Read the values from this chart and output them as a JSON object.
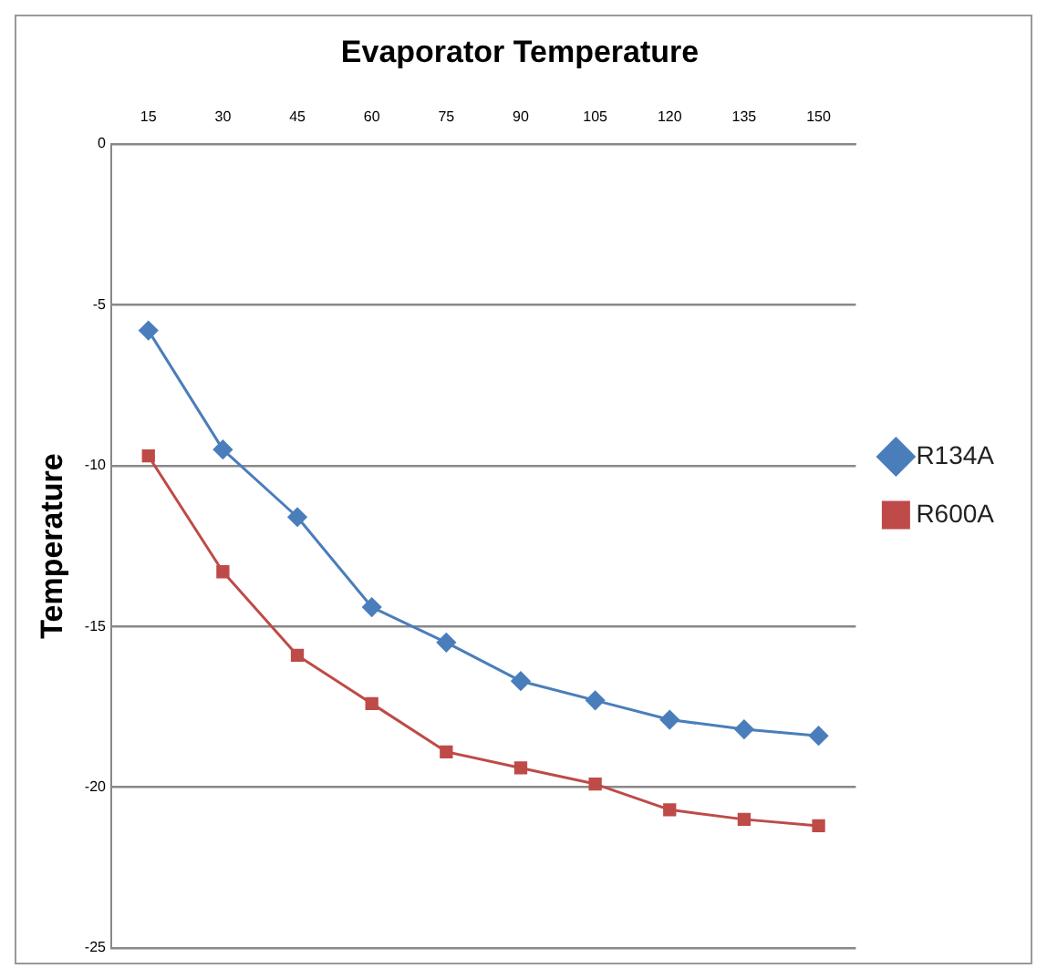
{
  "chart_data": {
    "type": "line",
    "title": "Evaporator Temperature",
    "ylabel": "Temperature",
    "categories": [
      "15",
      "30",
      "45",
      "60",
      "75",
      "90",
      "105",
      "120",
      "135",
      "150"
    ],
    "series": [
      {
        "name": "R134A",
        "color": "#4a7ebb",
        "marker": "diamond",
        "values": [
          -5.8,
          -9.5,
          -11.6,
          -14.4,
          -15.5,
          -16.7,
          -17.3,
          -17.9,
          -18.2,
          -18.4
        ]
      },
      {
        "name": "R600A",
        "color": "#be4b48",
        "marker": "square",
        "values": [
          -9.7,
          -13.3,
          -15.9,
          -17.4,
          -18.9,
          -19.4,
          -19.9,
          -20.7,
          -21.0,
          -21.2
        ]
      }
    ],
    "ylim": [
      -25,
      0
    ],
    "yticks": [
      -25,
      -20,
      -15,
      -10,
      -5,
      0
    ],
    "grid": "y",
    "legend": "right"
  }
}
